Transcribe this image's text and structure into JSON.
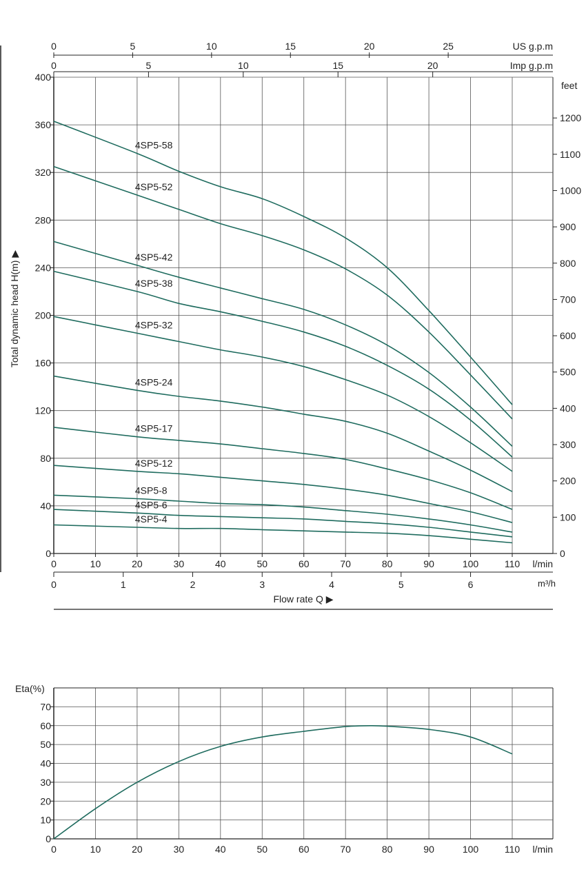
{
  "colors": {
    "curve": "#1e6b5e",
    "grid": "#555555",
    "axis": "#222222",
    "text": "#222222"
  },
  "chart_data": [
    {
      "type": "line",
      "title": "",
      "xlabel": "Flow  rate Q ▶",
      "ylabel": "Total dynamic head H(m) ▶",
      "grid": true,
      "x_unit": "l/min",
      "x_unit_m3": "m³/h",
      "x_unit_us": "US g.p.m",
      "x_unit_imp": "Imp g.p.m",
      "y_unit_right": "feet",
      "xlim": [
        0,
        120
      ],
      "ylim": [
        0,
        400
      ],
      "x_ticks": [
        "0",
        "10",
        "20",
        "30",
        "40",
        "50",
        "60",
        "70",
        "80",
        "90",
        "100",
        "110"
      ],
      "m3h_ticks": [
        "0",
        "1",
        "2",
        "3",
        "4",
        "5",
        "6"
      ],
      "us_gpm_ticks": [
        "0",
        "5",
        "10",
        "15",
        "20",
        "25"
      ],
      "imp_gpm_ticks": [
        "0",
        "5",
        "10",
        "15",
        "20"
      ],
      "y_ticks": [
        "0",
        "40",
        "80",
        "120",
        "160",
        "200",
        "240",
        "280",
        "320",
        "360",
        "400"
      ],
      "feet_ticks": [
        "0",
        "100",
        "200",
        "300",
        "400",
        "500",
        "600",
        "700",
        "800",
        "900",
        "1000",
        "1100",
        "1200"
      ],
      "series": [
        {
          "name": "4SP5-58",
          "x": [
            0,
            20,
            30,
            40,
            50,
            60,
            70,
            80,
            90,
            100,
            110
          ],
          "y": [
            363,
            336,
            321,
            308,
            298,
            283,
            265,
            240,
            204,
            165,
            125
          ]
        },
        {
          "name": "4SP5-52",
          "x": [
            0,
            20,
            30,
            40,
            50,
            60,
            70,
            80,
            90,
            100,
            110
          ],
          "y": [
            325,
            301,
            289,
            277,
            267,
            255,
            239,
            217,
            186,
            150,
            113
          ]
        },
        {
          "name": "4SP5-42",
          "x": [
            0,
            20,
            30,
            40,
            50,
            60,
            70,
            80,
            90,
            100,
            110
          ],
          "y": [
            262,
            242,
            232,
            223,
            214,
            205,
            192,
            175,
            152,
            123,
            90
          ]
        },
        {
          "name": "4SP5-38",
          "x": [
            0,
            20,
            30,
            40,
            50,
            60,
            70,
            80,
            90,
            100,
            110
          ],
          "y": [
            237,
            220,
            210,
            203,
            195,
            186,
            174,
            158,
            138,
            112,
            81
          ]
        },
        {
          "name": "4SP5-32",
          "x": [
            0,
            20,
            30,
            40,
            50,
            60,
            70,
            80,
            90,
            100,
            110
          ],
          "y": [
            199,
            185,
            178,
            171,
            165,
            157,
            146,
            133,
            115,
            93,
            69
          ]
        },
        {
          "name": "4SP5-24",
          "x": [
            0,
            20,
            30,
            40,
            50,
            60,
            70,
            80,
            90,
            100,
            110
          ],
          "y": [
            149,
            137,
            132,
            128,
            123,
            117,
            111,
            101,
            86,
            70,
            52
          ]
        },
        {
          "name": "4SP5-17",
          "x": [
            0,
            20,
            30,
            40,
            50,
            60,
            70,
            80,
            90,
            100,
            110
          ],
          "y": [
            106,
            98,
            95,
            92,
            88,
            84,
            79,
            71,
            62,
            51,
            37
          ]
        },
        {
          "name": "4SP5-12",
          "x": [
            0,
            20,
            30,
            40,
            50,
            60,
            70,
            80,
            90,
            100,
            110
          ],
          "y": [
            74,
            69,
            67,
            64,
            61,
            58,
            54,
            49,
            42,
            35,
            26
          ]
        },
        {
          "name": "4SP5-8",
          "x": [
            0,
            20,
            30,
            40,
            50,
            60,
            70,
            80,
            90,
            100,
            110
          ],
          "y": [
            49,
            46,
            44,
            42,
            41,
            39,
            36,
            33,
            29,
            24,
            18
          ]
        },
        {
          "name": "4SP5-6",
          "x": [
            0,
            20,
            30,
            40,
            50,
            60,
            70,
            80,
            90,
            100,
            110
          ],
          "y": [
            37,
            34,
            32,
            31,
            30,
            29,
            27,
            25,
            22,
            18,
            14
          ]
        },
        {
          "name": "4SP5-4",
          "x": [
            0,
            20,
            30,
            40,
            50,
            60,
            70,
            80,
            90,
            100,
            110
          ],
          "y": [
            24,
            22,
            21,
            21,
            20,
            19,
            18,
            17,
            15,
            12,
            9
          ]
        }
      ]
    },
    {
      "type": "line",
      "title": "",
      "ylabel": "Eta(%)",
      "xlabel": "",
      "x_unit": "l/min",
      "grid": true,
      "xlim": [
        0,
        120
      ],
      "ylim": [
        0,
        80
      ],
      "x_ticks": [
        "0",
        "10",
        "20",
        "30",
        "40",
        "50",
        "60",
        "70",
        "80",
        "90",
        "100",
        "110"
      ],
      "y_ticks": [
        "0",
        "10",
        "20",
        "30",
        "40",
        "50",
        "60",
        "70"
      ],
      "series": [
        {
          "name": "",
          "x": [
            0,
            10,
            20,
            30,
            40,
            50,
            60,
            70,
            76,
            80,
            90,
            100,
            110
          ],
          "y": [
            0,
            16,
            30,
            41,
            49,
            54,
            57,
            59.5,
            60,
            59.7,
            58,
            54,
            45
          ]
        }
      ]
    }
  ]
}
